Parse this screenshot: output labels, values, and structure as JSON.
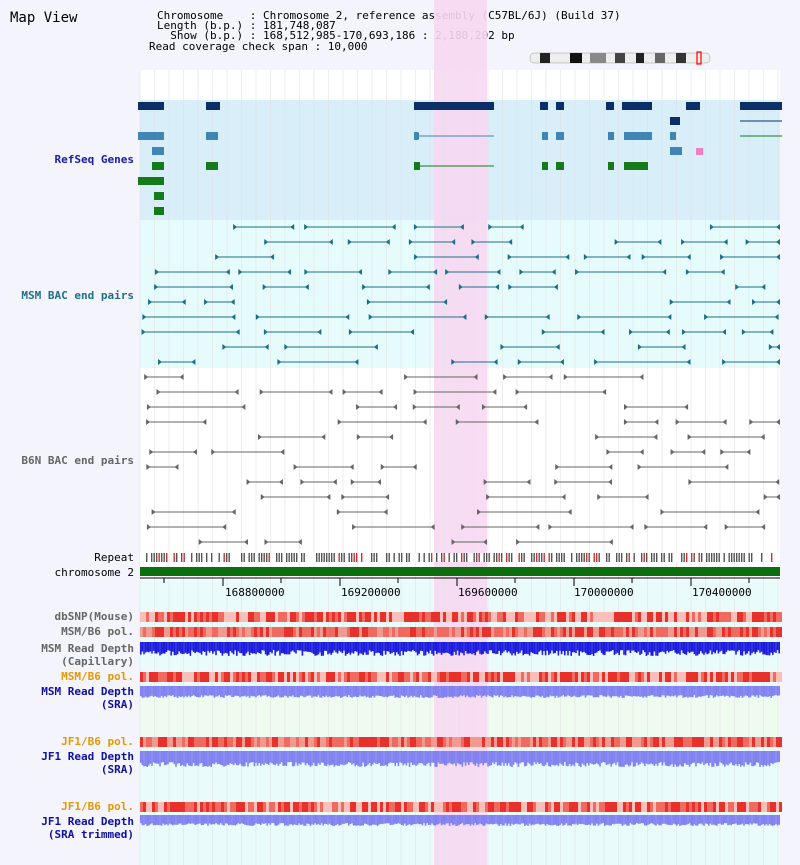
{
  "header": {
    "title": "Map View",
    "chromosome_line": "Chromosome    : Chromosome 2, reference assembly (C57BL/6J) (Build 37)",
    "length_line": "Length (b.p.) : 181,748,087",
    "show_line": "  Show (b.p.) : 168,512,985-170,693,186 : 2,180,202 bp",
    "coverage_line": "Read coverage check span : 10,000"
  },
  "tracks": {
    "refseq": "RefSeq Genes",
    "msm_bac": "MSM BAC end pairs",
    "b6n_bac": "B6N BAC end pairs",
    "repeat": "Repeat",
    "chromosome": "chromosome 2",
    "dbsnp": "dbSNP(Mouse)",
    "msm_b6_pol": "MSM/B6 pol.",
    "msm_depth_cap_1": "MSM Read Depth",
    "msm_depth_cap_2": "(Capillary)",
    "msm_b6_pol_sra": "MSM/B6 pol.",
    "msm_depth_sra_1": "MSM Read Depth",
    "msm_depth_sra_2": "(SRA)",
    "jf1_b6_pol": "JF1/B6 pol.",
    "jf1_depth_1": "JF1 Read Depth",
    "jf1_depth_2": "(SRA)",
    "jf1_b6_pol_trim": "JF1/B6 pol.",
    "jf1_trim_1": "JF1 Read Depth",
    "jf1_trim_2": "(SRA trimmed)"
  },
  "axis": {
    "ticks": [
      "168800000",
      "169200000",
      "169600000",
      "170000000",
      "170400000"
    ]
  },
  "colors": {
    "highlight": "#f7d8f2",
    "refseq_bg": "#d8eef9",
    "msm_bg": "#e6fbfb",
    "gene_dark": "#0b2f66",
    "gene_mid": "#3f86b6",
    "gene_green": "#157a1a",
    "chrom_bar": "#0d6e0d",
    "snp_red": "#e8312a",
    "depth_blue": "#1b1bde",
    "depth_light": "#8080f0"
  }
}
